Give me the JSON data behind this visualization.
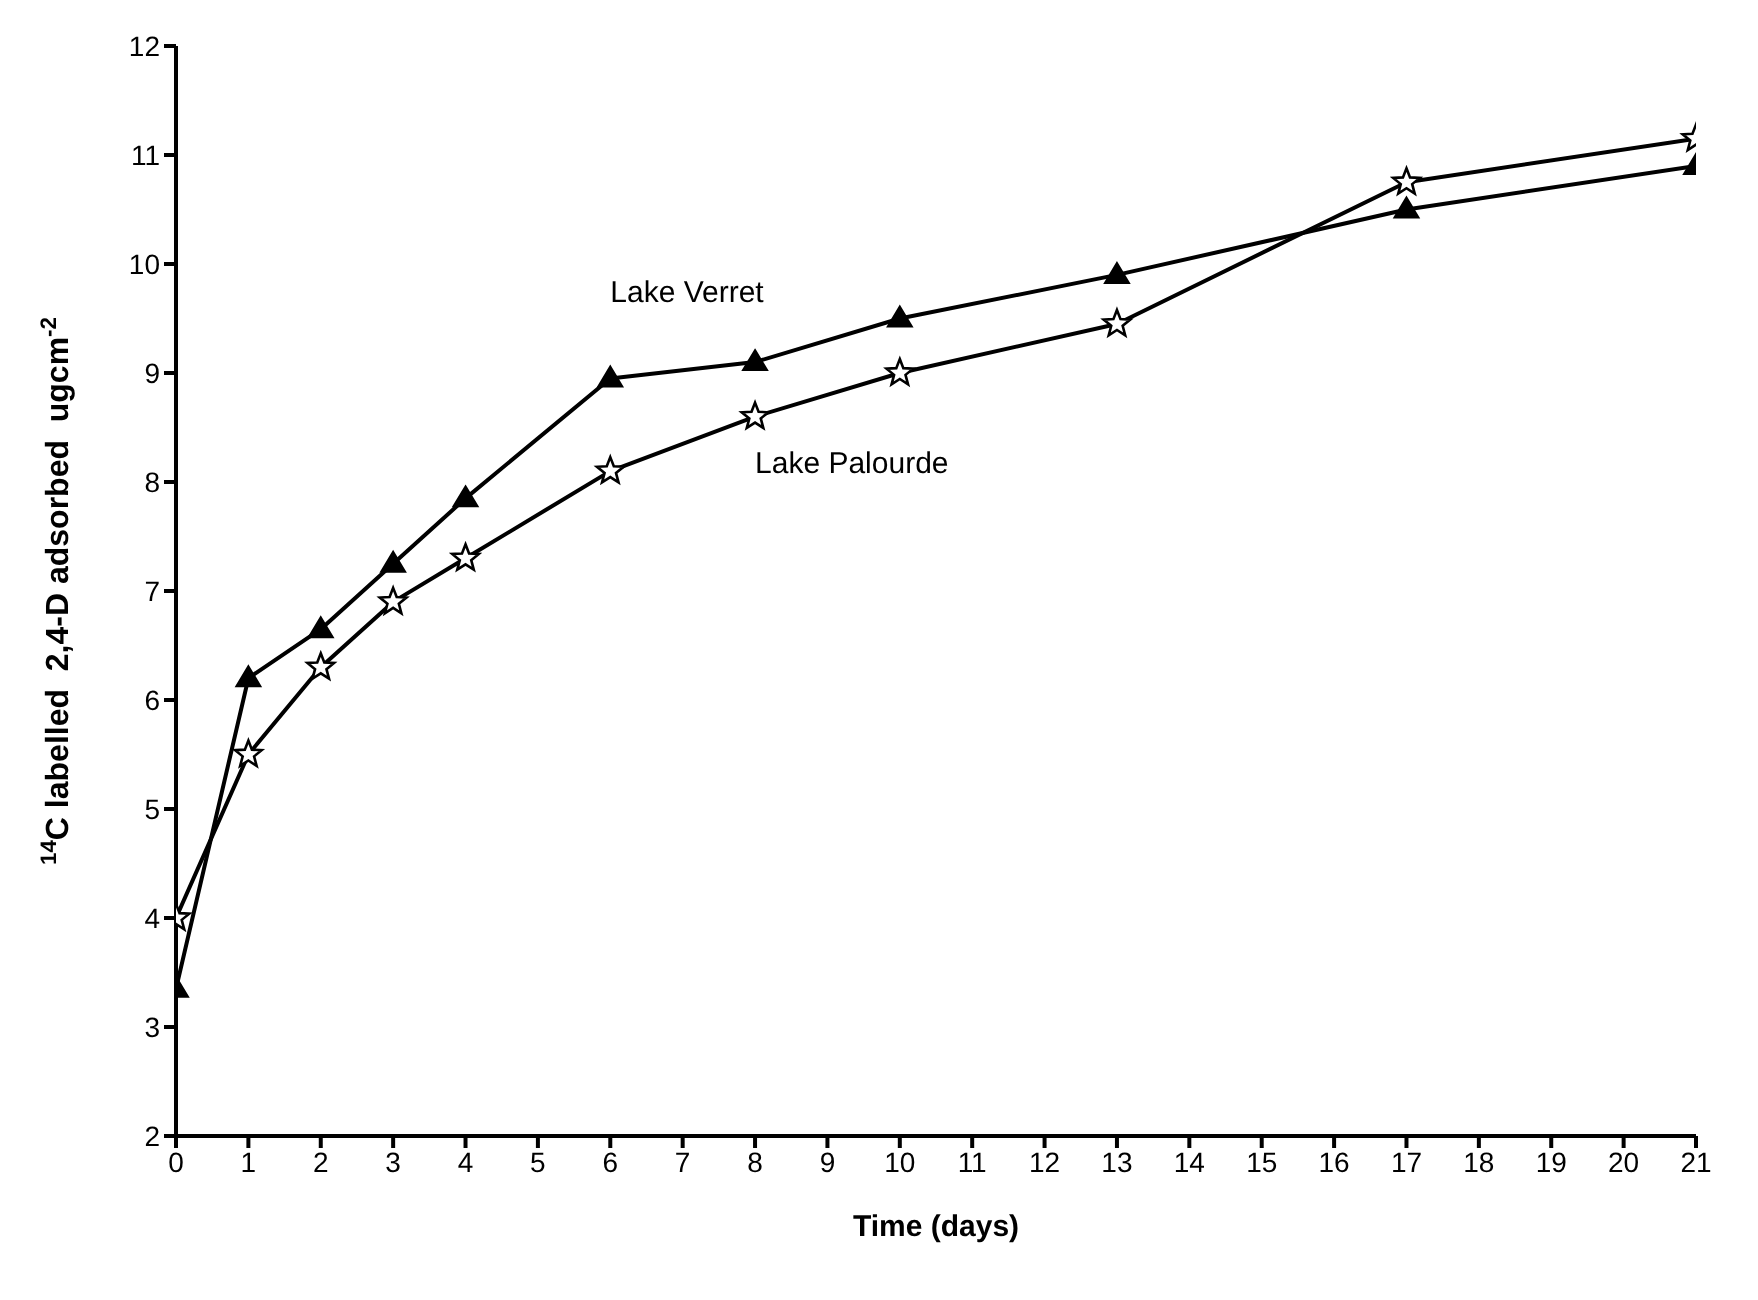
{
  "chart_data": {
    "type": "line",
    "xlabel": "Time (days)",
    "ylabel": "$^{14}$C labelled  2,4-D adsorbed  ugcm$^{-2}$",
    "xlim": [
      0,
      21
    ],
    "xticks": [
      0,
      1,
      2,
      3,
      4,
      5,
      6,
      7,
      8,
      9,
      10,
      11,
      12,
      13,
      14,
      15,
      16,
      17,
      18,
      19,
      20,
      21
    ],
    "ylim": [
      2,
      12
    ],
    "yticks": [
      2,
      3,
      4,
      5,
      6,
      7,
      8,
      9,
      10,
      11,
      12
    ],
    "grid": false,
    "legend": false,
    "line_style": "solid",
    "x": [
      0,
      1,
      2,
      3,
      4,
      6,
      8,
      10,
      13,
      17,
      21
    ],
    "series": [
      {
        "name": "Lake Verret",
        "color": "#000000",
        "marker": "triangle",
        "values": [
          3.35,
          6.2,
          6.65,
          7.25,
          7.85,
          8.95,
          9.1,
          9.5,
          9.9,
          10.5,
          10.9
        ]
      },
      {
        "name": "Lake Palourde",
        "color": "#000000",
        "marker": "star",
        "values": [
          4.0,
          5.5,
          6.3,
          6.9,
          7.3,
          8.1,
          8.6,
          9.0,
          9.45,
          10.75,
          11.15
        ]
      }
    ]
  }
}
